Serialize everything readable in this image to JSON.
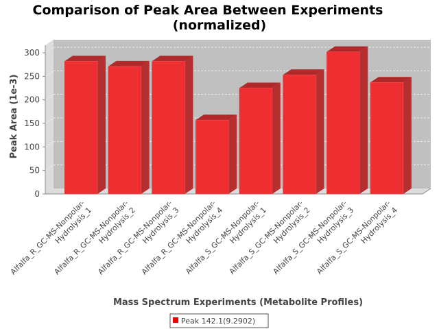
{
  "chart_data": {
    "type": "bar",
    "title": "Comparison of Peak Area Between Experiments",
    "subtitle": "(normalized)",
    "xlabel": "Mass Spectrum Experiments (Metabolite Profiles)",
    "ylabel": "Peak Area (1e-3)",
    "ylim": [
      0,
      300
    ],
    "yticks": [
      "0",
      "50",
      "100",
      "150",
      "200",
      "250",
      "300"
    ],
    "grid": true,
    "categories": [
      [
        "Alfalfa_R_GC-MS-Nonpolar-",
        "Hydrolysis_1"
      ],
      [
        "Alfalfa_R_GC-MS-Nonpolar-",
        "Hydrolysis_2"
      ],
      [
        "Alfalfa_R_GC-MS-Nonpolar-",
        "Hydrolysis_3"
      ],
      [
        "Alfalfa_R_GC-MS-Nonpolar-",
        "Hydrolysis_4"
      ],
      [
        "Alfalfa_S_GC-MS-Nonpolar-",
        "Hydrolysis_1"
      ],
      [
        "Alfalfa_S_GC-MS-Nonpolar-",
        "Hydrolysis_2"
      ],
      [
        "Alfalfa_S_GC-MS-Nonpolar-",
        "Hydrolysis_3"
      ],
      [
        "Alfalfa_S_GC-MS-Nonpolar-",
        "Hydrolysis_4"
      ]
    ],
    "series": [
      {
        "name": "Peak 142.1(9.2902)",
        "values": [
          282,
          271,
          282,
          157,
          225,
          253,
          302,
          237
        ],
        "color": "#ee2e31"
      }
    ],
    "legend_position": "bottom"
  }
}
